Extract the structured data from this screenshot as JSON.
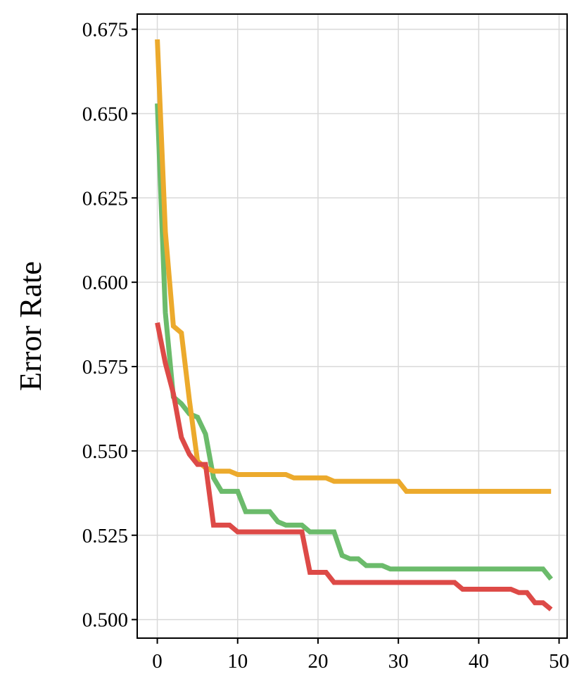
{
  "chart_data": {
    "type": "line",
    "title": "",
    "xlabel": "",
    "ylabel": "Error Rate",
    "xlim": [
      -2.5,
      51
    ],
    "ylim": [
      0.4945,
      0.6795
    ],
    "xticks": [
      0,
      10,
      20,
      30,
      40,
      50
    ],
    "yticks": [
      0.5,
      0.525,
      0.55,
      0.575,
      0.6,
      0.625,
      0.65,
      0.675
    ],
    "xtick_labels": [
      "0",
      "10",
      "20",
      "30",
      "40",
      "50"
    ],
    "ytick_labels": [
      "0.500",
      "0.525",
      "0.550",
      "0.575",
      "0.600",
      "0.625",
      "0.650",
      "0.675"
    ],
    "grid": true,
    "legend": "none",
    "series": [
      {
        "color": "#6bbb6b",
        "x": [
          0,
          1,
          2,
          3,
          4,
          5,
          6,
          7,
          8,
          9,
          10,
          11,
          12,
          13,
          14,
          15,
          16,
          17,
          18,
          19,
          20,
          21,
          22,
          23,
          24,
          25,
          26,
          27,
          28,
          29,
          30,
          31,
          32,
          33,
          34,
          35,
          36,
          37,
          38,
          39,
          40,
          41,
          42,
          43,
          44,
          45,
          46,
          47,
          48,
          49
        ],
        "y": [
          0.653,
          0.591,
          0.566,
          0.564,
          0.561,
          0.56,
          0.555,
          0.542,
          0.538,
          0.538,
          0.538,
          0.532,
          0.532,
          0.532,
          0.532,
          0.529,
          0.528,
          0.528,
          0.528,
          0.526,
          0.526,
          0.526,
          0.526,
          0.519,
          0.518,
          0.518,
          0.516,
          0.516,
          0.516,
          0.515,
          0.515,
          0.515,
          0.515,
          0.515,
          0.515,
          0.515,
          0.515,
          0.515,
          0.515,
          0.515,
          0.515,
          0.515,
          0.515,
          0.515,
          0.515,
          0.515,
          0.515,
          0.515,
          0.515,
          0.512
        ]
      },
      {
        "color": "#ecaa2c",
        "x": [
          0,
          1,
          2,
          3,
          4,
          5,
          6,
          7,
          8,
          9,
          10,
          11,
          12,
          13,
          14,
          15,
          16,
          17,
          18,
          19,
          20,
          21,
          22,
          23,
          24,
          25,
          26,
          27,
          28,
          29,
          30,
          31,
          32,
          33,
          34,
          35,
          36,
          37,
          38,
          39,
          40,
          41,
          42,
          43,
          44,
          45,
          46,
          47,
          48,
          49
        ],
        "y": [
          0.672,
          0.615,
          0.587,
          0.585,
          0.565,
          0.547,
          0.545,
          0.544,
          0.544,
          0.544,
          0.543,
          0.543,
          0.543,
          0.543,
          0.543,
          0.543,
          0.543,
          0.542,
          0.542,
          0.542,
          0.542,
          0.542,
          0.541,
          0.541,
          0.541,
          0.541,
          0.541,
          0.541,
          0.541,
          0.541,
          0.541,
          0.538,
          0.538,
          0.538,
          0.538,
          0.538,
          0.538,
          0.538,
          0.538,
          0.538,
          0.538,
          0.538,
          0.538,
          0.538,
          0.538,
          0.538,
          0.538,
          0.538,
          0.538,
          0.538
        ]
      },
      {
        "color": "#dd4a47",
        "x": [
          0,
          1,
          2,
          3,
          4,
          5,
          6,
          7,
          8,
          9,
          10,
          11,
          12,
          13,
          14,
          15,
          16,
          17,
          18,
          19,
          20,
          21,
          22,
          23,
          24,
          25,
          26,
          27,
          28,
          29,
          30,
          31,
          32,
          33,
          34,
          35,
          36,
          37,
          38,
          39,
          40,
          41,
          42,
          43,
          44,
          45,
          46,
          47,
          48,
          49
        ],
        "y": [
          0.588,
          0.576,
          0.567,
          0.554,
          0.549,
          0.546,
          0.546,
          0.528,
          0.528,
          0.528,
          0.526,
          0.526,
          0.526,
          0.526,
          0.526,
          0.526,
          0.526,
          0.526,
          0.526,
          0.514,
          0.514,
          0.514,
          0.511,
          0.511,
          0.511,
          0.511,
          0.511,
          0.511,
          0.511,
          0.511,
          0.511,
          0.511,
          0.511,
          0.511,
          0.511,
          0.511,
          0.511,
          0.511,
          0.509,
          0.509,
          0.509,
          0.509,
          0.509,
          0.509,
          0.509,
          0.508,
          0.508,
          0.505,
          0.505,
          0.503
        ]
      }
    ]
  }
}
